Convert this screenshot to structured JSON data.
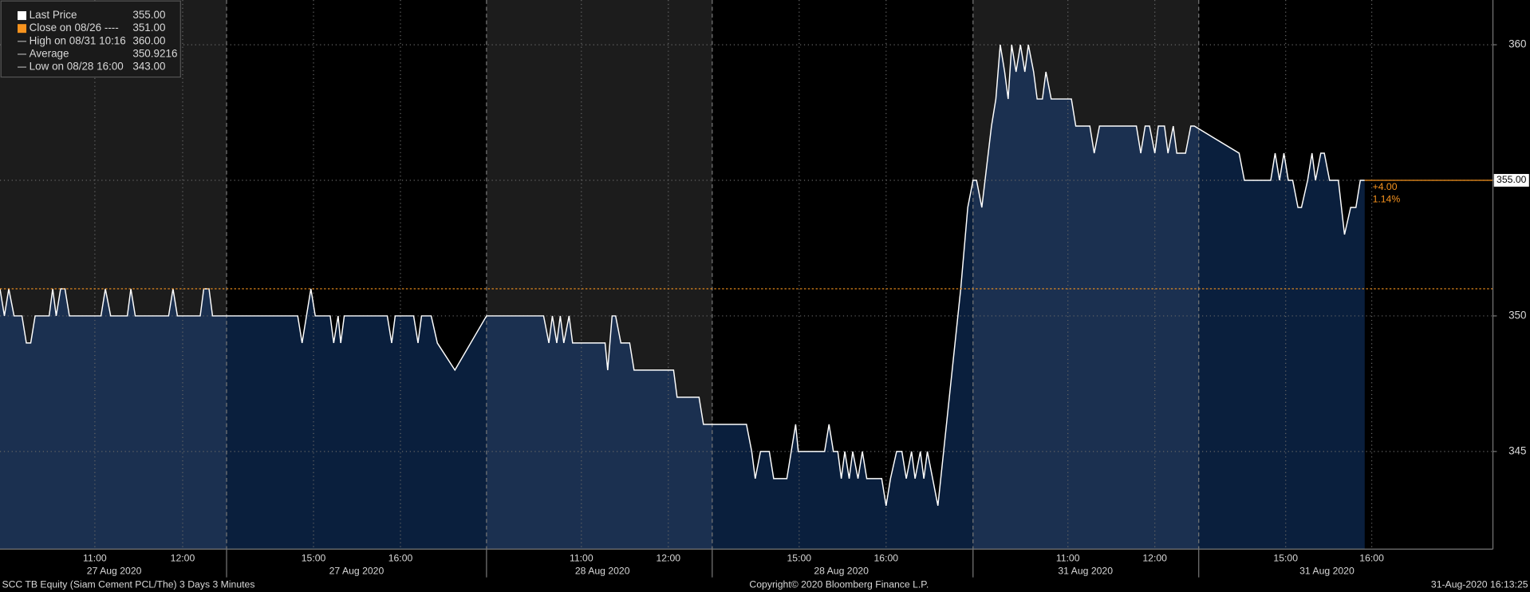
{
  "chart_data": {
    "type": "area",
    "footer_left": "SCC TB Equity (Siam Cement PCL/The) 3 Days 3 Minutes",
    "footer_center": "Copyright© 2020 Bloomberg Finance L.P.",
    "footer_right": "31-Aug-2020 16:13:25",
    "legend": [
      {
        "label": "Last Price",
        "text": "355.00",
        "color": "#ffffff"
      },
      {
        "label": "Close on 08/26 ----",
        "text": "351.00",
        "color": "#f7931e"
      },
      {
        "label": "High on 08/31 10:16",
        "text": "360.00",
        "color": "#aaaaaa"
      },
      {
        "label": "Average",
        "text": "350.9216",
        "color": "#aaaaaa"
      },
      {
        "label": "Low on 08/28 16:00",
        "text": "343.00",
        "color": "#aaaaaa"
      }
    ],
    "xlim": [
      -0.08,
      16.92
    ],
    "ylim": [
      341.4,
      361.65
    ],
    "yticks": [
      345,
      350,
      355,
      360
    ],
    "xticks": [
      {
        "value": 1.0,
        "label": "11:00"
      },
      {
        "value": 2.0,
        "label": "12:00"
      },
      {
        "value": 3.49,
        "label": "15:00"
      },
      {
        "value": 4.48,
        "label": "16:00"
      },
      {
        "value": 6.54,
        "label": "11:00"
      },
      {
        "value": 7.53,
        "label": "12:00"
      },
      {
        "value": 9.02,
        "label": "15:00"
      },
      {
        "value": 10.01,
        "label": "16:00"
      },
      {
        "value": 12.08,
        "label": "11:00"
      },
      {
        "value": 13.07,
        "label": "12:00"
      },
      {
        "value": 14.56,
        "label": "15:00"
      },
      {
        "value": 15.54,
        "label": "16:00"
      }
    ],
    "date_ticks": [
      {
        "value": 1.22,
        "label": "27 Aug 2020"
      },
      {
        "value": 3.98,
        "label": "27 Aug 2020"
      },
      {
        "value": 6.78,
        "label": "28 Aug 2020"
      },
      {
        "value": 9.5,
        "label": "28 Aug 2020"
      },
      {
        "value": 12.28,
        "label": "31 Aug 2020"
      },
      {
        "value": 15.03,
        "label": "31 Aug 2020"
      }
    ],
    "session_breaks": [
      2.5,
      5.46,
      8.03,
      11.0,
      13.57
    ],
    "shaded_sessions": [
      [
        -0.08,
        2.5
      ],
      [
        5.46,
        8.03
      ],
      [
        11.0,
        13.57
      ]
    ],
    "grid": true,
    "close": 351,
    "close_color": "#f7931e",
    "last_price": {
      "value": 355,
      "label": "355.00"
    },
    "change_labels": [
      "+4.00",
      "1.14%"
    ],
    "series": [
      {
        "name": "Last Price",
        "color": "#ffffff",
        "x": [
          -0.08,
          -0.03,
          0.02,
          0.08,
          0.17,
          0.22,
          0.27,
          0.32,
          0.48,
          0.52,
          0.56,
          0.61,
          0.66,
          0.71,
          1.07,
          1.12,
          1.18,
          1.37,
          1.41,
          1.46,
          1.84,
          1.89,
          1.94,
          2.2,
          2.24,
          2.3,
          2.34,
          3.31,
          3.36,
          3.41,
          3.46,
          3.51,
          3.68,
          3.72,
          3.77,
          3.8,
          3.84,
          4.33,
          4.38,
          4.42,
          4.63,
          4.68,
          4.72,
          4.83,
          4.9,
          5.1,
          5.46,
          6.11,
          6.17,
          6.21,
          6.26,
          6.3,
          6.34,
          6.4,
          6.44,
          6.81,
          6.84,
          6.89,
          6.93,
          6.99,
          7.09,
          7.14,
          7.59,
          7.63,
          7.88,
          7.93,
          8.42,
          8.48,
          8.52,
          8.58,
          8.68,
          8.73,
          8.88,
          8.93,
          8.98,
          9.01,
          9.31,
          9.36,
          9.41,
          9.46,
          9.5,
          9.54,
          9.59,
          9.63,
          9.69,
          9.74,
          9.79,
          9.96,
          10.01,
          10.06,
          10.13,
          10.19,
          10.24,
          10.3,
          10.34,
          10.4,
          10.44,
          10.48,
          10.6,
          10.86,
          10.94,
          11.0,
          11.04,
          11.1,
          11.21,
          11.26,
          11.31,
          11.36,
          11.4,
          11.44,
          11.49,
          11.54,
          11.59,
          11.63,
          11.69,
          11.73,
          11.79,
          11.83,
          11.89,
          12.12,
          12.17,
          12.33,
          12.38,
          12.44,
          12.86,
          12.91,
          12.96,
          13.01,
          13.07,
          13.11,
          13.18,
          13.22,
          13.28,
          13.32,
          13.42,
          13.48,
          13.52,
          14.03,
          14.09,
          14.39,
          14.44,
          14.49,
          14.54,
          14.59,
          14.64,
          14.7,
          14.74,
          14.81,
          14.86,
          14.9,
          14.96,
          15.0,
          15.06,
          15.1,
          15.16,
          15.23,
          15.3,
          15.36,
          15.41,
          15.46
        ],
        "values": [
          351,
          350,
          351,
          350,
          350,
          349,
          349,
          350,
          350,
          351,
          350,
          351,
          351,
          350,
          350,
          351,
          350,
          350,
          351,
          350,
          350,
          351,
          350,
          350,
          351,
          351,
          350,
          350,
          349,
          350,
          351,
          350,
          350,
          349,
          350,
          349,
          350,
          350,
          349,
          350,
          350,
          349,
          350,
          350,
          349,
          348,
          350,
          350,
          349,
          350,
          349,
          350,
          349,
          350,
          349,
          349,
          348,
          350,
          350,
          349,
          349,
          348,
          348,
          347,
          347,
          346,
          346,
          345,
          344,
          345,
          345,
          344,
          344,
          345,
          346,
          345,
          345,
          346,
          345,
          345,
          344,
          345,
          344,
          345,
          344,
          345,
          344,
          344,
          343,
          344,
          345,
          345,
          344,
          345,
          344,
          345,
          344,
          345,
          343,
          351,
          354,
          355,
          355,
          354,
          357,
          358,
          360,
          359,
          358,
          360,
          359,
          360,
          359,
          360,
          359,
          358,
          358,
          359,
          358,
          358,
          357,
          357,
          356,
          357,
          357,
          356,
          357,
          357,
          356,
          357,
          357,
          356,
          357,
          356,
          356,
          357,
          357,
          356,
          355,
          355,
          356,
          355,
          356,
          355,
          355,
          354,
          354,
          355,
          356,
          355,
          356,
          356,
          355,
          355,
          355,
          353,
          354,
          354,
          355,
          355
        ]
      }
    ]
  }
}
